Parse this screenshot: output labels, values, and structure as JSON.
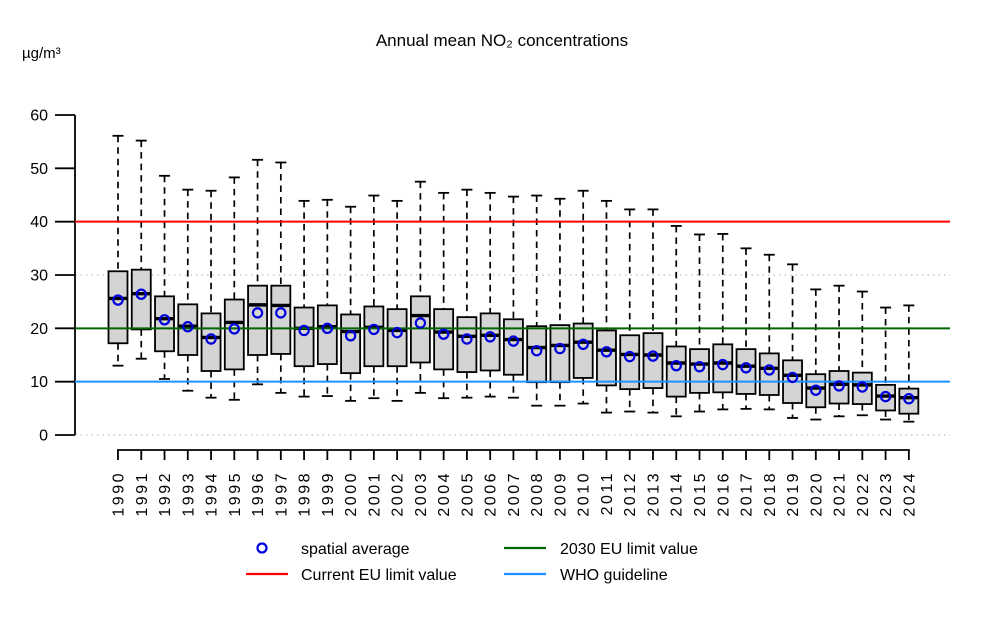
{
  "title": "Annual mean NO₂ concentrations",
  "y_axis": {
    "unit_label": "µg/m³",
    "ticks": [
      0,
      10,
      20,
      30,
      40,
      50,
      60
    ],
    "range": [
      0,
      60
    ]
  },
  "reference_lines": [
    {
      "id": "current-eu-limit-line",
      "label": "Current EU limit value",
      "value": 40,
      "color": "#ff0000",
      "style": "solid"
    },
    {
      "id": "eu-2030-limit-line",
      "label": "2030 EU limit value",
      "value": 20,
      "color": "#006400",
      "style": "solid"
    },
    {
      "id": "who-guideline-line",
      "label": "WHO guideline",
      "value": 10,
      "color": "#1e90ff",
      "style": "solid"
    },
    {
      "id": "gridline-30",
      "label": "",
      "value": 30,
      "color": "#c0c0c0",
      "style": "dotted"
    },
    {
      "id": "gridline-0",
      "label": "",
      "value": 0,
      "color": "#c0c0c0",
      "style": "dotted"
    }
  ],
  "legend": {
    "items": [
      {
        "label": "spatial average",
        "marker": "circle",
        "color": "#0000dd"
      },
      {
        "label": "2030 EU limit value",
        "marker": "line",
        "color": "#006400"
      },
      {
        "label": "Current EU limit value",
        "marker": "line",
        "color": "#ff0000"
      },
      {
        "label": "WHO guideline",
        "marker": "line",
        "color": "#1e90ff"
      }
    ]
  },
  "chart_data": {
    "type": "boxplot",
    "title": "Annual mean NO₂ concentrations",
    "xlabel": "",
    "ylabel": "µg/m³",
    "ylim": [
      0,
      60
    ],
    "grid_dotted_at": [
      0,
      30
    ],
    "legend_position": "bottom",
    "box_fill": "#d4d4d4",
    "box_stroke": "#000000",
    "mean_marker_color": "#0000dd",
    "categories": [
      1990,
      1991,
      1992,
      1993,
      1994,
      1995,
      1996,
      1997,
      1998,
      1999,
      2000,
      2001,
      2002,
      2003,
      2004,
      2005,
      2006,
      2007,
      2008,
      2009,
      2010,
      2011,
      2012,
      2013,
      2014,
      2015,
      2016,
      2017,
      2018,
      2019,
      2020,
      2021,
      2022,
      2023,
      2024
    ],
    "series": [
      {
        "name": "whisker_low",
        "values": [
          13.0,
          14.3,
          10.5,
          8.3,
          7.0,
          6.6,
          9.5,
          7.9,
          7.2,
          7.3,
          6.4,
          6.9,
          6.4,
          7.9,
          6.9,
          7.0,
          7.2,
          7.0,
          5.5,
          5.5,
          5.9,
          4.2,
          4.4,
          4.2,
          3.5,
          4.4,
          4.8,
          4.9,
          4.8,
          3.2,
          2.9,
          3.5,
          3.7,
          2.9,
          2.5
        ]
      },
      {
        "name": "q1",
        "values": [
          17.2,
          19.8,
          15.7,
          15.0,
          12.0,
          12.3,
          15.0,
          15.2,
          12.9,
          13.3,
          11.6,
          12.9,
          12.9,
          13.6,
          12.3,
          11.8,
          12.1,
          11.3,
          9.9,
          9.9,
          10.7,
          9.3,
          8.6,
          8.8,
          7.2,
          7.9,
          8.0,
          7.7,
          7.5,
          6.0,
          5.2,
          5.9,
          5.8,
          4.6,
          4.0
        ]
      },
      {
        "name": "median",
        "values": [
          25.6,
          26.5,
          21.8,
          20.4,
          18.3,
          21.1,
          24.4,
          24.3,
          20.0,
          20.3,
          19.4,
          20.2,
          19.6,
          22.4,
          19.3,
          18.5,
          18.7,
          17.9,
          16.4,
          16.8,
          17.4,
          15.9,
          15.1,
          15.0,
          13.5,
          13.3,
          13.5,
          12.9,
          12.5,
          11.2,
          8.8,
          9.5,
          9.4,
          7.3,
          7.0
        ]
      },
      {
        "name": "spatial_average",
        "values": [
          25.3,
          26.4,
          21.6,
          20.3,
          18.0,
          19.9,
          22.9,
          22.9,
          19.6,
          20.0,
          18.6,
          19.8,
          19.2,
          21.0,
          18.9,
          18.0,
          18.4,
          17.6,
          15.8,
          16.2,
          17.0,
          15.6,
          14.7,
          14.8,
          13.0,
          12.8,
          13.2,
          12.6,
          12.2,
          10.8,
          8.4,
          9.2,
          9.0,
          7.2,
          6.8
        ]
      },
      {
        "name": "q3",
        "values": [
          30.7,
          31.0,
          26.0,
          24.5,
          22.8,
          25.4,
          28.0,
          28.0,
          23.9,
          24.3,
          22.6,
          24.1,
          23.6,
          26.0,
          23.6,
          22.1,
          22.8,
          21.7,
          20.4,
          20.6,
          20.9,
          19.6,
          18.7,
          19.1,
          16.6,
          16.1,
          17.0,
          16.1,
          15.3,
          14.0,
          11.4,
          12.0,
          11.7,
          9.4,
          8.7
        ]
      },
      {
        "name": "whisker_high",
        "values": [
          56.1,
          55.2,
          48.6,
          46.0,
          45.8,
          48.3,
          51.6,
          51.1,
          43.9,
          44.1,
          42.8,
          44.9,
          43.9,
          47.5,
          45.4,
          46.0,
          45.4,
          44.7,
          44.9,
          44.3,
          45.8,
          43.9,
          42.3,
          42.3,
          39.2,
          37.6,
          37.7,
          35.0,
          33.8,
          32.0,
          27.3,
          28.0,
          26.9,
          23.9,
          24.3
        ]
      }
    ]
  }
}
